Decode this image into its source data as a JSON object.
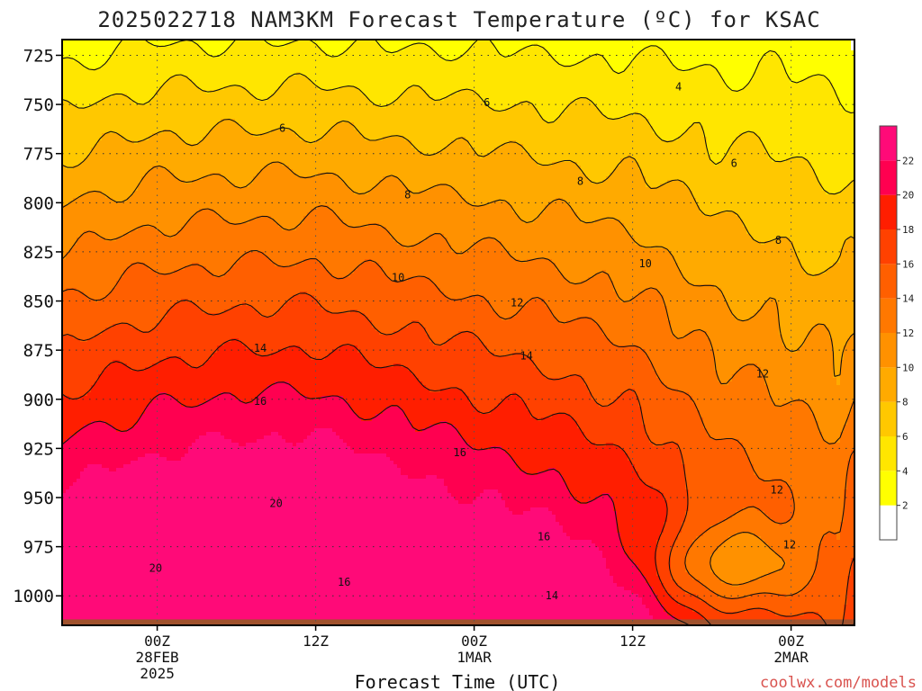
{
  "chart_data": {
    "type": "heatmap",
    "title": "2025022718 NAM3KM Forecast Temperature (ºC) for KSAC",
    "xlabel": "Forecast Time (UTC)",
    "ylabel": "",
    "credit": "coolwx.com/models",
    "y_axis": {
      "unit": "hPa",
      "inverted": true,
      "range": [
        1015,
        717
      ],
      "ticks": [
        725,
        750,
        775,
        800,
        825,
        850,
        875,
        900,
        925,
        950,
        975,
        1000
      ]
    },
    "x_axis": {
      "range_hours": [
        -6,
        44
      ],
      "ticks": [
        {
          "hour": 0,
          "lines": [
            "00Z",
            "28FEB",
            "2025"
          ]
        },
        {
          "hour": 10,
          "lines": [
            "12Z",
            "",
            ""
          ]
        },
        {
          "hour": 20,
          "lines": [
            "00Z",
            "1MAR",
            ""
          ]
        },
        {
          "hour": 30,
          "lines": [
            "12Z",
            "",
            ""
          ]
        },
        {
          "hour": 40,
          "lines": [
            "00Z",
            "2MAR",
            ""
          ]
        }
      ]
    },
    "grid": true,
    "colorbar": {
      "ticks": [
        2,
        4,
        6,
        8,
        10,
        12,
        14,
        16,
        18,
        20,
        22
      ],
      "bands": [
        {
          "from": 0,
          "to": 2,
          "color": "#ffffff"
        },
        {
          "from": 2,
          "to": 4,
          "color": "#ffff00"
        },
        {
          "from": 4,
          "to": 6,
          "color": "#ffe600"
        },
        {
          "from": 6,
          "to": 8,
          "color": "#ffc800"
        },
        {
          "from": 8,
          "to": 10,
          "color": "#ffaa00"
        },
        {
          "from": 10,
          "to": 12,
          "color": "#ff9100"
        },
        {
          "from": 12,
          "to": 14,
          "color": "#ff7800"
        },
        {
          "from": 14,
          "to": 16,
          "color": "#ff5f00"
        },
        {
          "from": 16,
          "to": 18,
          "color": "#ff4100"
        },
        {
          "from": 18,
          "to": 20,
          "color": "#ff1e00"
        },
        {
          "from": 20,
          "to": 22,
          "color": "#ff0050"
        },
        {
          "from": 22,
          "to": 24,
          "color": "#ff0a78"
        }
      ]
    },
    "surface_color": "#a0522d",
    "surface_pressure": 1012,
    "isotherm_levels": [
      4,
      6,
      8,
      10,
      12,
      14,
      16,
      18,
      20
    ],
    "isotherm_profile": {
      "hours": [
        -6,
        0,
        5,
        10,
        15,
        20,
        25,
        30,
        35,
        40,
        43,
        44
      ],
      "t_at_725": [
        3.6,
        4.6,
        4.5,
        4.6,
        4.2,
        4.3,
        3.9,
        3.9,
        3.6,
        3.5,
        3.0,
        2.4
      ],
      "lapse_c_per_100hpa": [
        8.4,
        8.6,
        9.0,
        9.0,
        8.6,
        7.9,
        7.6,
        6.8,
        5.4,
        4.7,
        4.5,
        5.6
      ]
    },
    "warm_cores": [
      {
        "hour": 3.5,
        "pressure": 970,
        "temperature": 20.6
      },
      {
        "hour": -1.0,
        "pressure": 1003,
        "temperature": 20.6
      },
      {
        "hour": 20.0,
        "pressure": 1003,
        "temperature": 18.8
      }
    ],
    "cool_pocket": {
      "hour": 36,
      "pressure": 985,
      "temperature": 10.6
    },
    "contour_labels": [
      {
        "value": "4",
        "hour": 32.9,
        "pressure": 741
      },
      {
        "value": "6",
        "hour": 7.9,
        "pressure": 762
      },
      {
        "value": "6",
        "hour": 20.8,
        "pressure": 749
      },
      {
        "value": "6",
        "hour": 36.4,
        "pressure": 780
      },
      {
        "value": "8",
        "hour": 15.8,
        "pressure": 796
      },
      {
        "value": "8",
        "hour": 26.7,
        "pressure": 789
      },
      {
        "value": "8",
        "hour": 39.2,
        "pressure": 819
      },
      {
        "value": "10",
        "hour": 15.2,
        "pressure": 838
      },
      {
        "value": "10",
        "hour": 30.8,
        "pressure": 831
      },
      {
        "value": "12",
        "hour": 22.7,
        "pressure": 851
      },
      {
        "value": "12",
        "hour": 38.2,
        "pressure": 887
      },
      {
        "value": "12",
        "hour": 39.1,
        "pressure": 946
      },
      {
        "value": "12",
        "hour": 39.9,
        "pressure": 974
      },
      {
        "value": "14",
        "hour": 6.5,
        "pressure": 874
      },
      {
        "value": "14",
        "hour": 23.3,
        "pressure": 878
      },
      {
        "value": "14",
        "hour": 24.9,
        "pressure": 1000
      },
      {
        "value": "16",
        "hour": 6.5,
        "pressure": 901
      },
      {
        "value": "16",
        "hour": 19.1,
        "pressure": 927
      },
      {
        "value": "16",
        "hour": 24.4,
        "pressure": 970
      },
      {
        "value": "16",
        "hour": 11.8,
        "pressure": 993
      },
      {
        "value": "20",
        "hour": 7.5,
        "pressure": 953
      },
      {
        "value": "20",
        "hour": -0.1,
        "pressure": 986
      }
    ]
  }
}
